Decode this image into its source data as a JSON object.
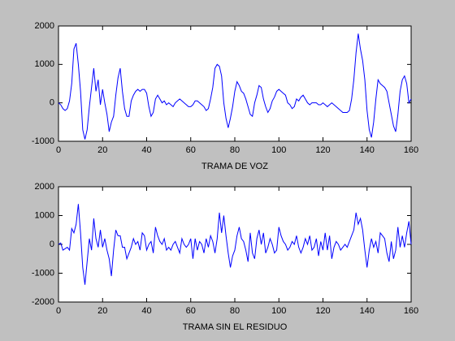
{
  "chart_data": [
    {
      "type": "line",
      "xlabel": "TRAMA DE VOZ",
      "xlim": [
        0,
        160
      ],
      "xticks": [
        0,
        20,
        40,
        60,
        80,
        100,
        120,
        140,
        160
      ],
      "ylim": [
        -1000,
        2000
      ],
      "yticks": [
        -1000,
        0,
        1000,
        2000
      ],
      "grid": false,
      "x": [
        0,
        1,
        2,
        3,
        4,
        5,
        6,
        7,
        8,
        9,
        10,
        11,
        12,
        13,
        14,
        15,
        16,
        17,
        18,
        19,
        20,
        21,
        22,
        23,
        24,
        25,
        26,
        27,
        28,
        29,
        30,
        31,
        32,
        33,
        34,
        35,
        36,
        37,
        38,
        39,
        40,
        41,
        42,
        43,
        44,
        45,
        46,
        47,
        48,
        49,
        50,
        51,
        52,
        53,
        54,
        55,
        56,
        57,
        58,
        59,
        60,
        61,
        62,
        63,
        64,
        65,
        66,
        67,
        68,
        69,
        70,
        71,
        72,
        73,
        74,
        75,
        76,
        77,
        78,
        79,
        80,
        81,
        82,
        83,
        84,
        85,
        86,
        87,
        88,
        89,
        90,
        91,
        92,
        93,
        94,
        95,
        96,
        97,
        98,
        99,
        100,
        101,
        102,
        103,
        104,
        105,
        106,
        107,
        108,
        109,
        110,
        111,
        112,
        113,
        114,
        115,
        116,
        117,
        118,
        119,
        120,
        121,
        122,
        123,
        124,
        125,
        126,
        127,
        128,
        129,
        130,
        131,
        132,
        133,
        134,
        135,
        136,
        137,
        138,
        139,
        140,
        141,
        142,
        143,
        144,
        145,
        146,
        147,
        148,
        149,
        150,
        151,
        152,
        153,
        154,
        155,
        156,
        157,
        158,
        159,
        160
      ],
      "series": [
        {
          "color": "#0000ff",
          "values": [
            0,
            -50,
            -150,
            -200,
            -150,
            50,
            500,
            1400,
            1550,
            1000,
            300,
            -700,
            -950,
            -700,
            -100,
            400,
            900,
            300,
            600,
            -50,
            350,
            0,
            -300,
            -750,
            -500,
            -350,
            200,
            650,
            900,
            300,
            -150,
            -350,
            -350,
            50,
            200,
            300,
            350,
            300,
            350,
            350,
            250,
            -100,
            -350,
            -250,
            100,
            200,
            100,
            0,
            50,
            -50,
            0,
            -50,
            -100,
            0,
            50,
            100,
            50,
            0,
            -50,
            -100,
            -100,
            -50,
            50,
            50,
            0,
            -50,
            -100,
            -200,
            -150,
            100,
            400,
            900,
            1000,
            950,
            700,
            0,
            -400,
            -650,
            -400,
            -100,
            300,
            550,
            450,
            300,
            250,
            100,
            -100,
            -300,
            -350,
            0,
            200,
            450,
            400,
            100,
            -100,
            -250,
            -150,
            50,
            150,
            300,
            350,
            300,
            250,
            200,
            0,
            -50,
            -150,
            -100,
            100,
            50,
            150,
            200,
            100,
            0,
            -50,
            0,
            0,
            0,
            -50,
            -50,
            0,
            -50,
            -100,
            -50,
            0,
            -50,
            -100,
            -150,
            -200,
            -250,
            -250,
            -250,
            -200,
            100,
            600,
            1300,
            1800,
            1400,
            1100,
            600,
            -200,
            -700,
            -900,
            -500,
            100,
            600,
            500,
            450,
            400,
            300,
            0,
            -300,
            -600,
            -750,
            -300,
            300,
            600,
            700,
            500,
            0,
            100
          ]
        }
      ]
    },
    {
      "type": "line",
      "xlabel": "TRAMA SIN EL RESIDUO",
      "xlim": [
        0,
        160
      ],
      "xticks": [
        0,
        20,
        40,
        60,
        80,
        100,
        120,
        140,
        160
      ],
      "ylim": [
        -2000,
        2000
      ],
      "yticks": [
        -2000,
        -1000,
        0,
        1000,
        2000
      ],
      "grid": false,
      "x": [
        0,
        1,
        2,
        3,
        4,
        5,
        6,
        7,
        8,
        9,
        10,
        11,
        12,
        13,
        14,
        15,
        16,
        17,
        18,
        19,
        20,
        21,
        22,
        23,
        24,
        25,
        26,
        27,
        28,
        29,
        30,
        31,
        32,
        33,
        34,
        35,
        36,
        37,
        38,
        39,
        40,
        41,
        42,
        43,
        44,
        45,
        46,
        47,
        48,
        49,
        50,
        51,
        52,
        53,
        54,
        55,
        56,
        57,
        58,
        59,
        60,
        61,
        62,
        63,
        64,
        65,
        66,
        67,
        68,
        69,
        70,
        71,
        72,
        73,
        74,
        75,
        76,
        77,
        78,
        79,
        80,
        81,
        82,
        83,
        84,
        85,
        86,
        87,
        88,
        89,
        90,
        91,
        92,
        93,
        94,
        95,
        96,
        97,
        98,
        99,
        100,
        101,
        102,
        103,
        104,
        105,
        106,
        107,
        108,
        109,
        110,
        111,
        112,
        113,
        114,
        115,
        116,
        117,
        118,
        119,
        120,
        121,
        122,
        123,
        124,
        125,
        126,
        127,
        128,
        129,
        130,
        131,
        132,
        133,
        134,
        135,
        136,
        137,
        138,
        139,
        140,
        141,
        142,
        143,
        144,
        145,
        146,
        147,
        148,
        149,
        150,
        151,
        152,
        153,
        154,
        155,
        156,
        157,
        158,
        159,
        160
      ],
      "series": [
        {
          "color": "#0000ff",
          "values": [
            0,
            50,
            -200,
            -150,
            -100,
            -200,
            550,
            400,
            700,
            1400,
            400,
            -800,
            -1400,
            -600,
            200,
            -200,
            900,
            200,
            -100,
            500,
            -100,
            200,
            -200,
            -500,
            -1100,
            -200,
            500,
            300,
            300,
            -100,
            -100,
            -500,
            -300,
            -100,
            200,
            0,
            100,
            -200,
            400,
            300,
            -200,
            0,
            100,
            -300,
            600,
            300,
            100,
            0,
            200,
            -200,
            -100,
            -200,
            0,
            100,
            -100,
            -300,
            200,
            0,
            -100,
            0,
            200,
            -500,
            200,
            -200,
            100,
            0,
            -300,
            200,
            -100,
            300,
            100,
            -300,
            200,
            1100,
            400,
            1000,
            300,
            -300,
            -800,
            -400,
            -200,
            300,
            600,
            200,
            100,
            -200,
            -600,
            400,
            -300,
            -500,
            200,
            500,
            0,
            400,
            -300,
            -100,
            200,
            0,
            -300,
            -200,
            600,
            300,
            100,
            0,
            -200,
            -100,
            100,
            0,
            300,
            -100,
            -300,
            -100,
            200,
            0,
            300,
            -200,
            -100,
            200,
            -400,
            100,
            -200,
            400,
            -200,
            300,
            -500,
            -100,
            100,
            0,
            -200,
            -100,
            0,
            -100,
            100,
            300,
            500,
            1100,
            700,
            900,
            500,
            -200,
            -800,
            -200,
            200,
            -100,
            100,
            -300,
            400,
            300,
            200,
            -300,
            -600,
            100,
            -500,
            -200,
            600,
            -100,
            300,
            -100,
            400,
            800,
            0
          ]
        }
      ]
    }
  ]
}
